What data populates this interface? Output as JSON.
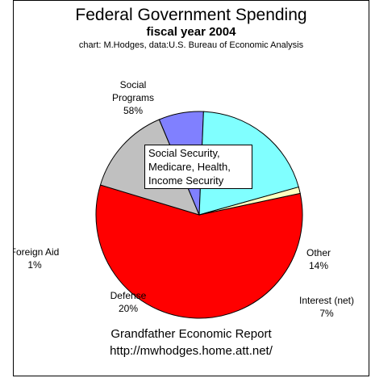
{
  "title": "Federal Government Spending",
  "subtitle": "fiscal year 2004",
  "credit": "chart: M.Hodges,   data:U.S. Bureau of Economic Analysis",
  "callout": [
    "Social Security,",
    "Medicare, Health,",
    "Income Security"
  ],
  "footer": [
    "Grandfather Economic Report",
    "http://mwhodges.home.att.net/"
  ],
  "chart_data": {
    "type": "pie",
    "title": "Federal Government Spending",
    "subtitle": "fiscal year 2004",
    "slices": [
      {
        "name": "Social Programs",
        "value": 58,
        "label": "58%",
        "color": "#ff0000"
      },
      {
        "name": "Other",
        "value": 14,
        "label": "14%",
        "color": "#c0c0c0"
      },
      {
        "name": "Interest (net)",
        "value": 7,
        "label": "7%",
        "color": "#8080ff"
      },
      {
        "name": "Defense",
        "value": 20,
        "label": "20%",
        "color": "#80ffff"
      },
      {
        "name": "Foreign Aid",
        "value": 1,
        "label": "1%",
        "color": "#ffffc0"
      }
    ],
    "label_lines": [
      [
        "Social",
        "Programs",
        "58%"
      ],
      [
        "Other",
        "14%"
      ],
      [
        "Interest (net)",
        "7%"
      ],
      [
        "Defense",
        "20%"
      ],
      [
        "Foreign Aid",
        "1%"
      ]
    ]
  }
}
